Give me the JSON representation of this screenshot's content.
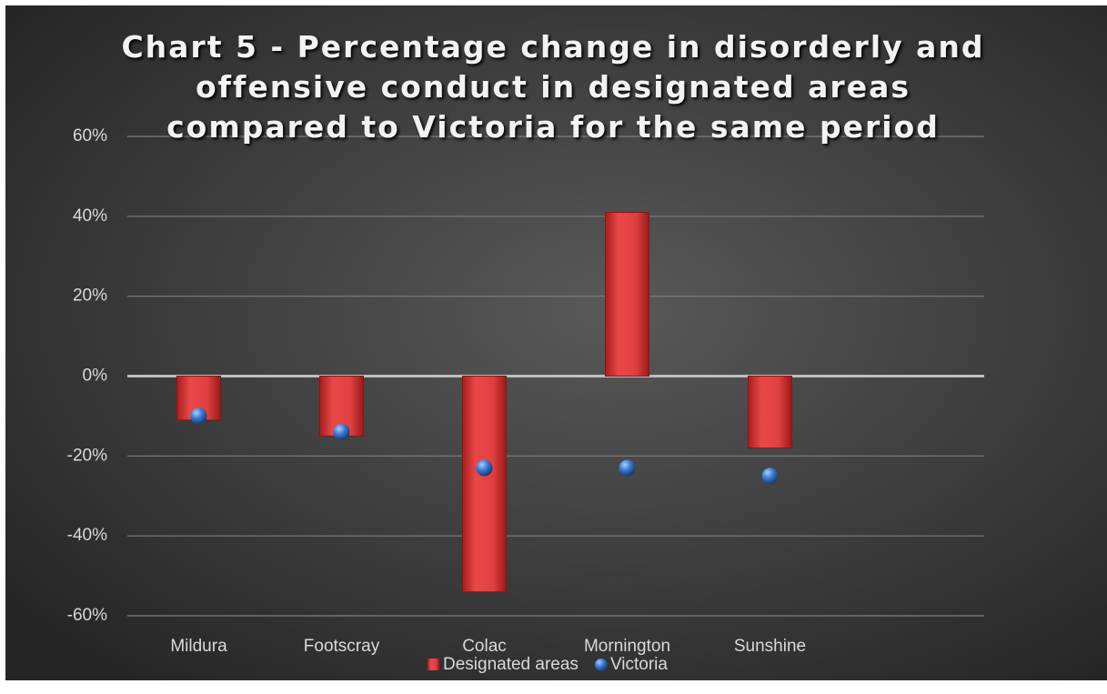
{
  "chart_data": {
    "type": "bar",
    "title": "Chart 5 - Percentage change in disorderly and offensive conduct in designated areas compared to Victoria for the same period",
    "categories": [
      "Mildura",
      "Footscray",
      "Colac",
      "Mornington",
      "Sunshine",
      null
    ],
    "series": [
      {
        "name": "Designated areas",
        "color": "#e03c3c",
        "kind": "bar",
        "values": [
          -11,
          -15,
          -54,
          41,
          -18,
          null
        ]
      },
      {
        "name": "Victoria",
        "color": "#3a7ad0",
        "kind": "point",
        "values": [
          -10,
          -14,
          -23,
          -23,
          -25,
          null
        ]
      }
    ],
    "ylim": [
      -60,
      60
    ],
    "yticks": [
      {
        "value": -60,
        "label": "-60%"
      },
      {
        "value": -40,
        "label": "-40%"
      },
      {
        "value": -20,
        "label": "-20%"
      },
      {
        "value": 0,
        "label": "0%"
      },
      {
        "value": 20,
        "label": "20%"
      },
      {
        "value": 40,
        "label": "40%"
      },
      {
        "value": 60,
        "label": "60%"
      }
    ],
    "grid": true,
    "legend": "bottom"
  }
}
